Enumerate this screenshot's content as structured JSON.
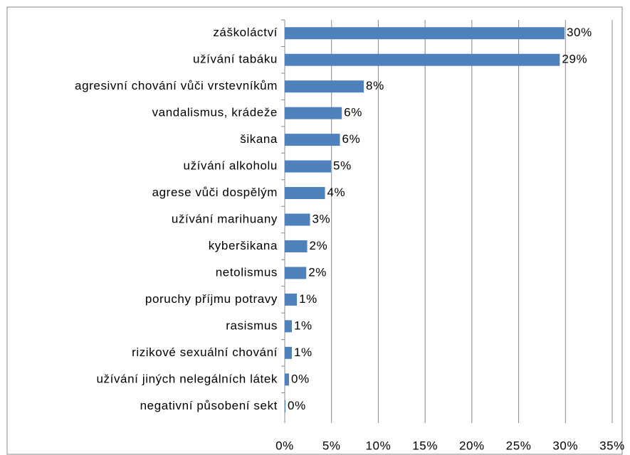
{
  "chart_data": {
    "type": "bar",
    "orientation": "horizontal",
    "categories": [
      "záškoláctví",
      "užívání tabáku",
      "agresivní chování vůči vrstevníkům",
      "vandalismus, krádeže",
      "šikana",
      "užívání alkoholu",
      "agrese vůči dospělým",
      "užívání marihuany",
      "kyberšikana",
      "netolismus",
      "poruchy příjmu potravy",
      "rasismus",
      "rizikové sexuální chování",
      "užívání jiných nelegálních látek",
      "negativní působení sekt"
    ],
    "values": [
      29.9,
      29.4,
      8.45,
      6.1,
      5.9,
      4.95,
      4.3,
      2.7,
      2.4,
      2.3,
      1.3,
      0.76,
      0.76,
      0.46,
      0.08
    ],
    "value_labels": [
      "30%",
      "29%",
      "8%",
      "6%",
      "6%",
      "5%",
      "4%",
      "3%",
      "2%",
      "2%",
      "1%",
      "1%",
      "1%",
      "0%",
      "0%"
    ],
    "color": "#4f81bd",
    "xlim": [
      0,
      35
    ],
    "xticks": [
      {
        "value": 0,
        "label": "0%"
      },
      {
        "value": 5,
        "label": "5%"
      },
      {
        "value": 10,
        "label": "10%"
      },
      {
        "value": 15,
        "label": "15%"
      },
      {
        "value": 20,
        "label": "20%"
      },
      {
        "value": 25,
        "label": "25%"
      },
      {
        "value": 30,
        "label": "30%"
      },
      {
        "value": 35,
        "label": "35%"
      }
    ],
    "grid": true
  }
}
